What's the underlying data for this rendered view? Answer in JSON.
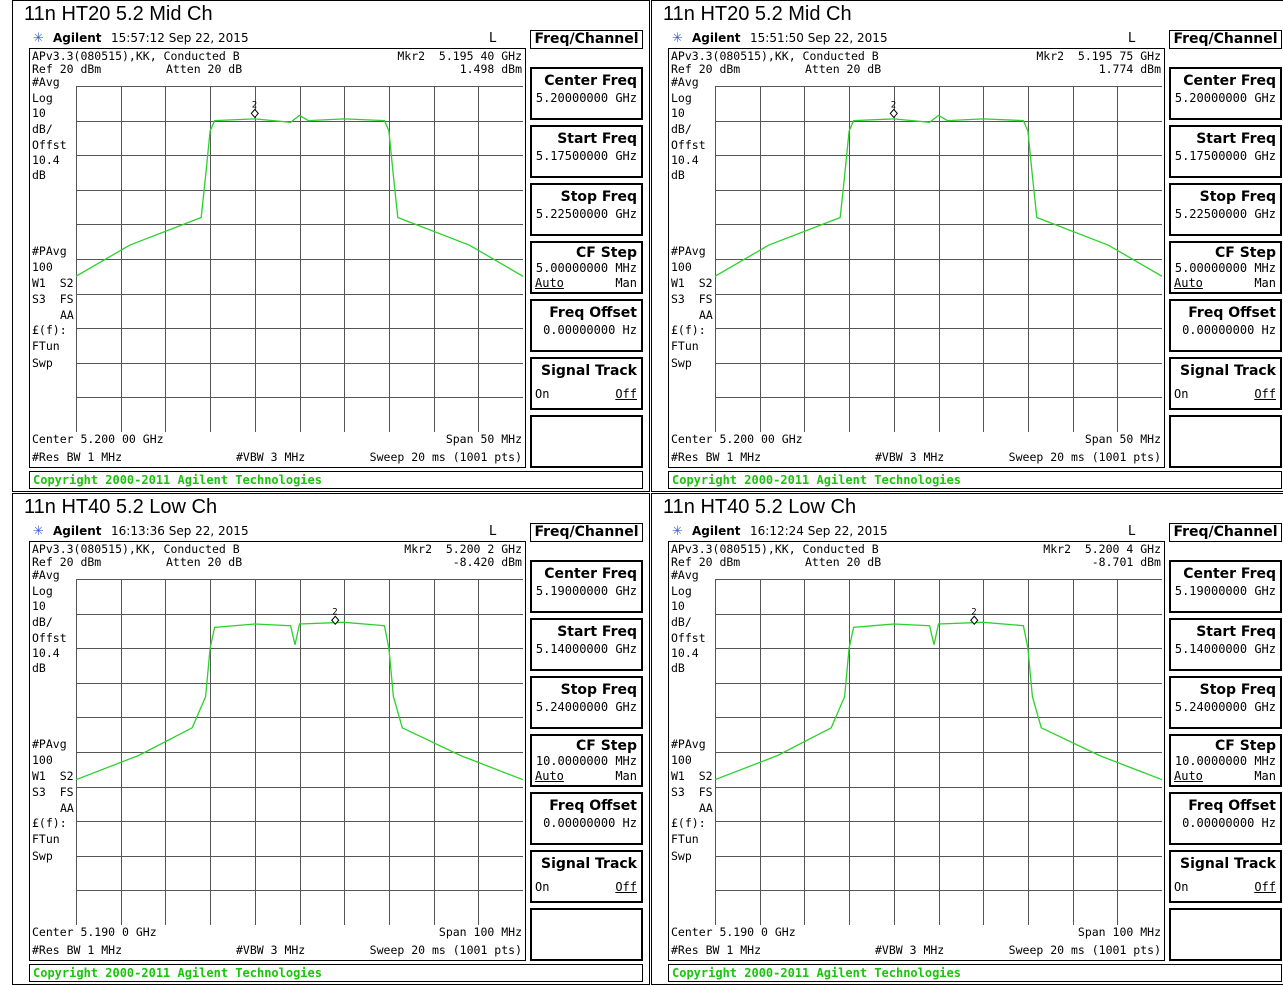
{
  "panels": [
    {
      "caption": "11n HT20 5.2 Mid Ch",
      "time": "15:57:12  Sep 22, 2015",
      "title_line": "APv3.3(080515),KK, Conducted B",
      "marker": "Mkr2  5.195 40 GHz",
      "ref": "Ref 20 dBm",
      "atten": "Atten 20 dB",
      "marker_level": "1.498 dBm",
      "center": "Center 5.200 00 GHz",
      "span": "Span 50 MHz",
      "res_bw": "#Res BW 1 MHz",
      "vbw": "#VBW 3 MHz",
      "sweep": "Sweep 20 ms (1001 pts)",
      "center_freq_value": "5.20000000 GHz",
      "start_freq_value": "5.17500000 GHz",
      "stop_freq_value": "5.22500000 GHz",
      "cf_step_value": "5.00000000 MHz",
      "freq_offset_value": "0.00000000  Hz",
      "marker_id": "2",
      "trace": [
        [
          0,
          0.55
        ],
        [
          0.12,
          0.46
        ],
        [
          0.28,
          0.38
        ],
        [
          0.29,
          0.26
        ],
        [
          0.3,
          0.13
        ],
        [
          0.31,
          0.1
        ],
        [
          0.4,
          0.095
        ],
        [
          0.48,
          0.105
        ],
        [
          0.5,
          0.085
        ],
        [
          0.52,
          0.1
        ],
        [
          0.6,
          0.095
        ],
        [
          0.69,
          0.1
        ],
        [
          0.7,
          0.13
        ],
        [
          0.71,
          0.26
        ],
        [
          0.72,
          0.38
        ],
        [
          0.88,
          0.46
        ],
        [
          1,
          0.55
        ]
      ]
    },
    {
      "caption": "11n HT20 5.2 Mid Ch",
      "time": "15:51:50  Sep 22, 2015",
      "title_line": "APv3.3(080515),KK, Conducted B",
      "marker": "Mkr2  5.195 75 GHz",
      "ref": "Ref 20 dBm",
      "atten": "Atten 20 dB",
      "marker_level": "1.774 dBm",
      "center": "Center 5.200 00 GHz",
      "span": "Span 50 MHz",
      "res_bw": "#Res BW 1 MHz",
      "vbw": "#VBW 3 MHz",
      "sweep": "Sweep 20 ms (1001 pts)",
      "center_freq_value": "5.20000000 GHz",
      "start_freq_value": "5.17500000 GHz",
      "stop_freq_value": "5.22500000 GHz",
      "cf_step_value": "5.00000000 MHz",
      "freq_offset_value": "0.00000000  Hz",
      "marker_id": "2",
      "trace": [
        [
          0,
          0.55
        ],
        [
          0.12,
          0.46
        ],
        [
          0.28,
          0.38
        ],
        [
          0.29,
          0.26
        ],
        [
          0.3,
          0.13
        ],
        [
          0.31,
          0.1
        ],
        [
          0.4,
          0.095
        ],
        [
          0.48,
          0.105
        ],
        [
          0.5,
          0.085
        ],
        [
          0.52,
          0.1
        ],
        [
          0.6,
          0.095
        ],
        [
          0.69,
          0.1
        ],
        [
          0.7,
          0.13
        ],
        [
          0.71,
          0.26
        ],
        [
          0.72,
          0.38
        ],
        [
          0.88,
          0.46
        ],
        [
          1,
          0.55
        ]
      ]
    },
    {
      "caption": "11n HT40 5.2 Low Ch",
      "time": "16:13:36  Sep 22, 2015",
      "title_line": "APv3.3(080515),KK, Conducted B",
      "marker": "Mkr2  5.200 2 GHz",
      "ref": "Ref 20 dBm",
      "atten": "Atten 20 dB",
      "marker_level": "-8.420 dBm",
      "center": "Center 5.190 0 GHz",
      "span": "Span 100 MHz",
      "res_bw": "#Res BW 1 MHz",
      "vbw": "#VBW 3 MHz",
      "sweep": "Sweep 20 ms (1001 pts)",
      "center_freq_value": "5.19000000 GHz",
      "start_freq_value": "5.14000000 GHz",
      "stop_freq_value": "5.24000000 GHz",
      "cf_step_value": "10.0000000 MHz",
      "freq_offset_value": "0.00000000  Hz",
      "marker_id": "2",
      "trace": [
        [
          0,
          0.58
        ],
        [
          0.14,
          0.51
        ],
        [
          0.26,
          0.43
        ],
        [
          0.29,
          0.34
        ],
        [
          0.3,
          0.2
        ],
        [
          0.31,
          0.14
        ],
        [
          0.4,
          0.13
        ],
        [
          0.48,
          0.135
        ],
        [
          0.49,
          0.19
        ],
        [
          0.5,
          0.13
        ],
        [
          0.6,
          0.125
        ],
        [
          0.69,
          0.135
        ],
        [
          0.7,
          0.2
        ],
        [
          0.71,
          0.34
        ],
        [
          0.73,
          0.43
        ],
        [
          0.86,
          0.51
        ],
        [
          1,
          0.58
        ]
      ]
    },
    {
      "caption": "11n HT40 5.2 Low Ch",
      "time": "16:12:24  Sep 22, 2015",
      "title_line": "APv3.3(080515),KK, Conducted B",
      "marker": "Mkr2  5.200 4 GHz",
      "ref": "Ref 20 dBm",
      "atten": "Atten 20 dB",
      "marker_level": "-8.701 dBm",
      "center": "Center 5.190 0 GHz",
      "span": "Span 100 MHz",
      "res_bw": "#Res BW 1 MHz",
      "vbw": "#VBW 3 MHz",
      "sweep": "Sweep 20 ms (1001 pts)",
      "center_freq_value": "5.19000000 GHz",
      "start_freq_value": "5.14000000 GHz",
      "stop_freq_value": "5.24000000 GHz",
      "cf_step_value": "10.0000000 MHz",
      "freq_offset_value": "0.00000000  Hz",
      "marker_id": "2",
      "trace": [
        [
          0,
          0.58
        ],
        [
          0.14,
          0.51
        ],
        [
          0.26,
          0.43
        ],
        [
          0.29,
          0.34
        ],
        [
          0.3,
          0.2
        ],
        [
          0.31,
          0.14
        ],
        [
          0.4,
          0.13
        ],
        [
          0.48,
          0.135
        ],
        [
          0.49,
          0.19
        ],
        [
          0.5,
          0.13
        ],
        [
          0.6,
          0.125
        ],
        [
          0.69,
          0.135
        ],
        [
          0.7,
          0.2
        ],
        [
          0.71,
          0.34
        ],
        [
          0.73,
          0.43
        ],
        [
          0.86,
          0.51
        ],
        [
          1,
          0.58
        ]
      ]
    }
  ],
  "common": {
    "brand": "Agilent",
    "lbl_L": "L",
    "menu_title": "Freq/Channel",
    "avg": "#Avg",
    "log": "Log",
    "scale": "10",
    "scale_unit": "dB/",
    "offst": "Offst",
    "offst_val": "10.4",
    "offst_unit": "dB",
    "pavg": "#PAvg",
    "pavg_val": "100",
    "w1s2": "W1  S2",
    "s3fs": "S3  FS",
    "aa": "AA",
    "lf": "£(f):",
    "ftun": "FTun",
    "swp": "Swp",
    "center_freq_label": "Center Freq",
    "start_freq_label": "Start Freq",
    "stop_freq_label": "Stop Freq",
    "cf_step_label": "CF Step",
    "auto": "Auto",
    "man": "Man",
    "freq_offset_label": "Freq Offset",
    "signal_track_label": "Signal Track",
    "on": "On",
    "off": "Off",
    "copyright": "Copyright 2000-2011 Agilent Technologies",
    "trace_color": "#2bd22b",
    "copyright_color": "#19c40b"
  }
}
